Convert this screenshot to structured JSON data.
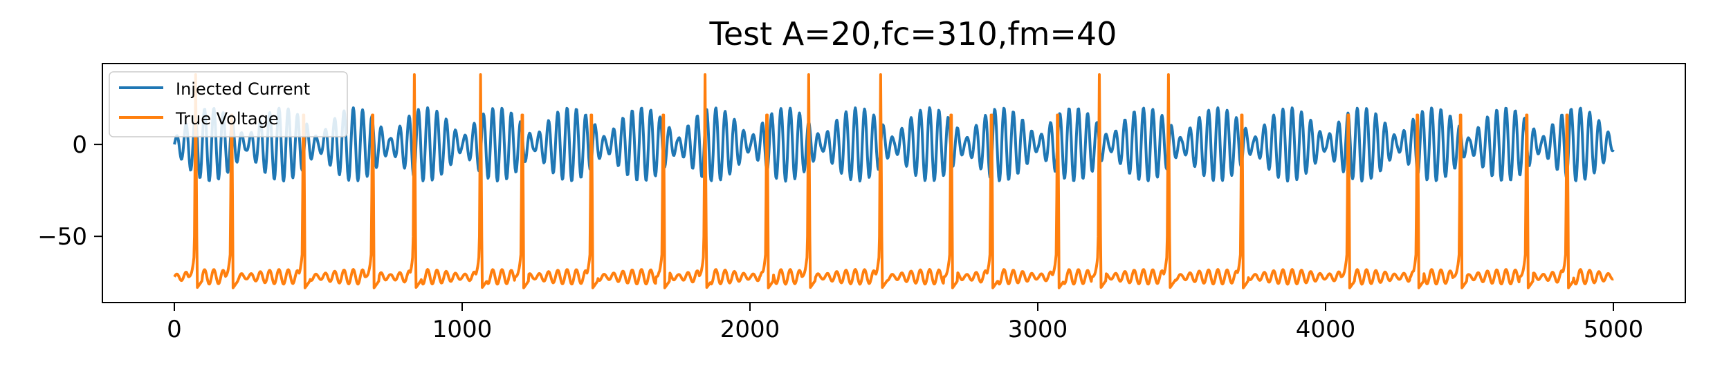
{
  "chart_data": {
    "type": "line",
    "title": "Test A=20,fc=310,fm=40",
    "xlabel": "",
    "ylabel": "",
    "xlim": [
      -250,
      5250
    ],
    "ylim": [
      -86,
      44
    ],
    "x_ticks": [
      0,
      1000,
      2000,
      3000,
      4000,
      5000
    ],
    "x_tick_labels": [
      "0",
      "1000",
      "2000",
      "3000",
      "4000",
      "5000"
    ],
    "y_ticks": [
      0,
      -50
    ],
    "y_tick_labels": [
      "0",
      "−50"
    ],
    "grid": false,
    "legend_position": "top-left",
    "series": [
      {
        "name": "Injected Current",
        "color": "#1f77b4",
        "amplitude": 20,
        "carrier_period_samples": 32.3,
        "envelope_period_samples": 250,
        "x_start": 0,
        "x_end": 5000
      },
      {
        "name": "True Voltage",
        "color": "#ff7f0e",
        "resting_level": -72,
        "peak_level": 38,
        "trough_level": -78,
        "spike_x": [
          75,
          200,
          450,
          690,
          835,
          1065,
          1210,
          1450,
          1700,
          1845,
          2060,
          2205,
          2455,
          2700,
          2840,
          3070,
          3215,
          3455,
          3710,
          4080,
          4320,
          4470,
          4700,
          4840
        ],
        "x_start": 0,
        "x_end": 5000
      }
    ]
  }
}
